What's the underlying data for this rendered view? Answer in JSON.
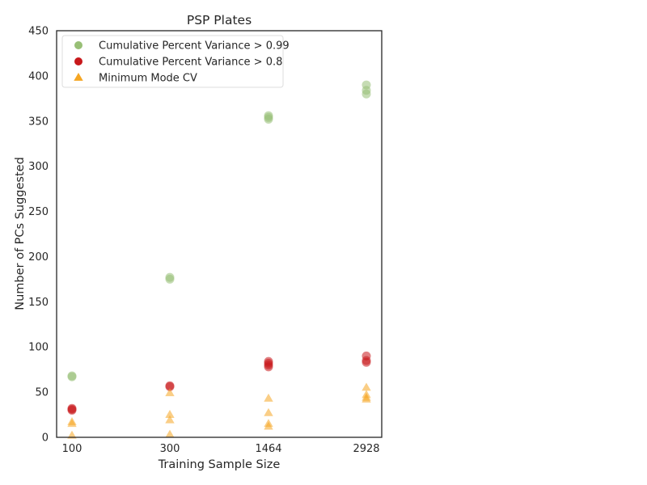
{
  "chart_data": {
    "type": "scatter",
    "title": "PSP Plates",
    "xlabel": "Training Sample Size",
    "ylabel": "Number of PCs Suggested",
    "categories": [
      "100",
      "300",
      "1464",
      "2928"
    ],
    "ylim": [
      0,
      450
    ],
    "yticks": [
      0,
      50,
      100,
      150,
      200,
      250,
      300,
      350,
      400,
      450
    ],
    "grid": false,
    "legend_position": "top-left",
    "series": [
      {
        "name": "Cumulative Percent Variance > 0.99",
        "marker": "circle",
        "color": "#98bf76",
        "points": [
          {
            "x": "100",
            "y": 67
          },
          {
            "x": "100",
            "y": 68
          },
          {
            "x": "300",
            "y": 175
          },
          {
            "x": "300",
            "y": 177
          },
          {
            "x": "1464",
            "y": 352
          },
          {
            "x": "1464",
            "y": 354
          },
          {
            "x": "1464",
            "y": 356
          },
          {
            "x": "2928",
            "y": 380
          },
          {
            "x": "2928",
            "y": 384
          },
          {
            "x": "2928",
            "y": 390
          }
        ]
      },
      {
        "name": "Cumulative Percent Variance > 0.8",
        "marker": "circle",
        "color": "#c8181b",
        "points": [
          {
            "x": "100",
            "y": 30
          },
          {
            "x": "100",
            "y": 31
          },
          {
            "x": "100",
            "y": 32
          },
          {
            "x": "300",
            "y": 56
          },
          {
            "x": "300",
            "y": 57
          },
          {
            "x": "1464",
            "y": 78
          },
          {
            "x": "1464",
            "y": 80
          },
          {
            "x": "1464",
            "y": 82
          },
          {
            "x": "1464",
            "y": 84
          },
          {
            "x": "2928",
            "y": 83
          },
          {
            "x": "2928",
            "y": 85
          },
          {
            "x": "2928",
            "y": 90
          }
        ]
      },
      {
        "name": "Minimum Mode CV",
        "marker": "triangle",
        "color": "#f5a623",
        "points": [
          {
            "x": "100",
            "y": 2
          },
          {
            "x": "100",
            "y": 15
          },
          {
            "x": "100",
            "y": 17
          },
          {
            "x": "300",
            "y": 3
          },
          {
            "x": "300",
            "y": 19
          },
          {
            "x": "300",
            "y": 25
          },
          {
            "x": "300",
            "y": 49
          },
          {
            "x": "1464",
            "y": 12
          },
          {
            "x": "1464",
            "y": 15
          },
          {
            "x": "1464",
            "y": 27
          },
          {
            "x": "1464",
            "y": 43
          },
          {
            "x": "2928",
            "y": 42
          },
          {
            "x": "2928",
            "y": 44
          },
          {
            "x": "2928",
            "y": 47
          },
          {
            "x": "2928",
            "y": 55
          }
        ]
      }
    ]
  }
}
